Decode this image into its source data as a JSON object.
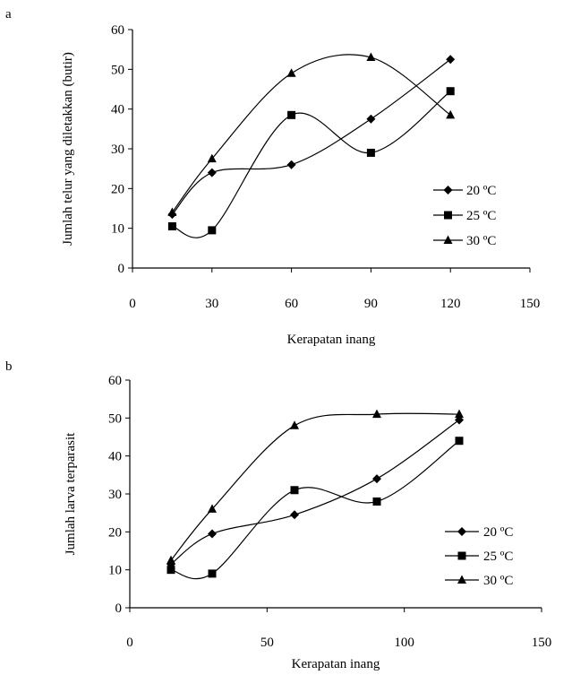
{
  "chart_data": [
    {
      "type": "line",
      "panel_label": "a",
      "xlabel": "Kerapatan inang",
      "ylabel": "Jumlah telur yang diletakkan (butir)",
      "xlim": [
        0,
        150
      ],
      "ylim": [
        0,
        60
      ],
      "xticks": [
        "0",
        "30",
        "60",
        "90",
        "120",
        "150"
      ],
      "yticks": [
        "0",
        "10",
        "20",
        "30",
        "40",
        "50",
        "60"
      ],
      "x": [
        15,
        30,
        60,
        90,
        120
      ],
      "series": [
        {
          "name": "20 ºC",
          "marker": "diamond",
          "values": [
            13.5,
            24,
            26,
            37.5,
            52.5
          ]
        },
        {
          "name": "25 ºC",
          "marker": "square",
          "values": [
            10.5,
            9.5,
            38.5,
            29,
            44.5
          ]
        },
        {
          "name": "30 ºC",
          "marker": "triangle",
          "values": [
            14,
            27.5,
            49,
            53,
            38.5
          ]
        }
      ],
      "grid": false,
      "legend_position": "right"
    },
    {
      "type": "line",
      "panel_label": "b",
      "xlabel": "Kerapatan inang",
      "ylabel": "Jumlah larva terparasit",
      "xlim": [
        0,
        150
      ],
      "ylim": [
        0,
        60
      ],
      "xticks": [
        "0",
        "50",
        "100",
        "150"
      ],
      "yticks": [
        "0",
        "10",
        "20",
        "30",
        "40",
        "50",
        "60"
      ],
      "x": [
        15,
        30,
        60,
        90,
        120
      ],
      "series": [
        {
          "name": "20 ºC",
          "marker": "diamond",
          "values": [
            11.5,
            19.5,
            24.5,
            34,
            49.5
          ]
        },
        {
          "name": "25 ºC",
          "marker": "square",
          "values": [
            10,
            9,
            31,
            28,
            44
          ]
        },
        {
          "name": "30 ºC",
          "marker": "triangle",
          "values": [
            12.5,
            26,
            48,
            51,
            51
          ]
        }
      ],
      "grid": false,
      "legend_position": "right"
    }
  ]
}
